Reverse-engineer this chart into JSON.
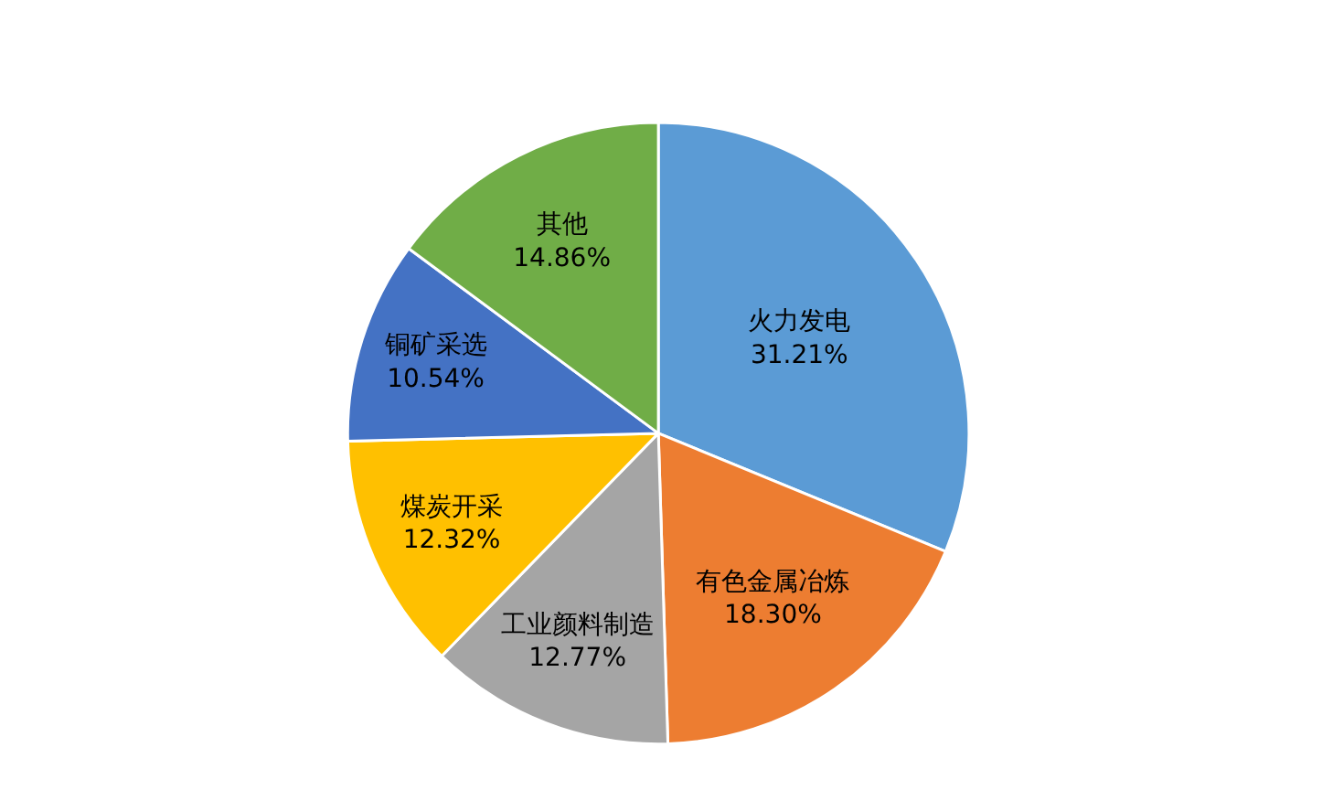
{
  "chart_data": {
    "type": "pie",
    "categories": [
      "火力发电",
      "有色金属冶炼",
      "工业颜料制造",
      "煤炭开采",
      "铜矿采选",
      "其他"
    ],
    "values": [
      31.21,
      18.3,
      12.77,
      12.32,
      10.54,
      14.86
    ],
    "value_labels": [
      "31.21%",
      "18.30%",
      "12.77%",
      "12.32%",
      "10.54%",
      "14.86%"
    ],
    "colors": [
      "#5b9bd5",
      "#ed7d31",
      "#a5a5a5",
      "#ffc000",
      "#4472c4",
      "#70ad47"
    ],
    "legend": false
  }
}
